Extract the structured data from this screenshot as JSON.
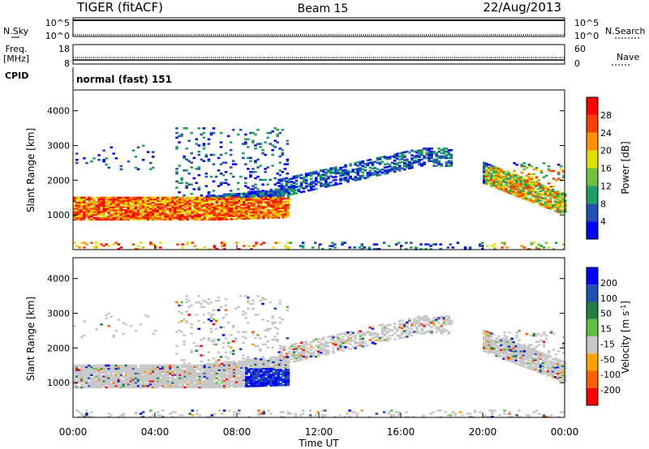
{
  "header": {
    "radar": "TIGER (fitACF)",
    "beam": "Beam 15",
    "date": "22/Aug/2013"
  },
  "params": {
    "nsky_label": "N.Sky",
    "nsearch_label": "N.Search",
    "freq_label_line1": "Freq.",
    "freq_label_line2": "[MHz]",
    "nave_label": "Nave",
    "cpid_label": "CPID",
    "cpid_value": "normal (fast) 151",
    "noise_left_ticks": [
      "10^5",
      "10^0"
    ],
    "noise_right_ticks": [
      "10^5",
      "10^0"
    ],
    "freq_left_ticks": [
      "18",
      "8"
    ],
    "freq_right_ticks": [
      "60",
      "0"
    ]
  },
  "chart_data": [
    {
      "type": "heatmap",
      "panel": "power",
      "ylabel": "Slant Range [km]",
      "xlabel": "Time UT",
      "ylim": [
        0,
        4600
      ],
      "yticks": [
        1000,
        2000,
        3000,
        4000
      ],
      "xlim": [
        0,
        24
      ],
      "colorbar": {
        "label": "Power [dB]",
        "ticks": [
          4,
          8,
          12,
          16,
          20,
          24,
          28
        ],
        "range": [
          0,
          30
        ]
      },
      "echo_regions": [
        {
          "t_start": 0,
          "t_end": 10.5,
          "range_low": 900,
          "range_high": 1500,
          "value": "20-28 dB"
        },
        {
          "t_start": 10,
          "t_end": 18.5,
          "range_low": 1500,
          "range_high": 2900,
          "value": "4-12 dB"
        },
        {
          "t_start": 20,
          "t_end": 24,
          "range_low": 900,
          "range_high": 2400,
          "value": "8-24 dB"
        }
      ]
    },
    {
      "type": "heatmap",
      "panel": "velocity",
      "ylabel": "Slant Range [km]",
      "xlabel": "Time UT",
      "ylim": [
        0,
        4600
      ],
      "yticks": [
        1000,
        2000,
        3000,
        4000
      ],
      "xlim": [
        0,
        24
      ],
      "colorbar": {
        "label": "Velocity [m s^-1]",
        "ticks": [
          200,
          100,
          50,
          15,
          -15,
          -50,
          -100,
          -200
        ],
        "range": [
          -250,
          250
        ]
      },
      "echo_regions": [
        {
          "t_start": 0,
          "t_end": 10.5,
          "range_low": 900,
          "range_high": 1500,
          "value": "-15 to 15 m/s (grey)"
        },
        {
          "t_start": 8.3,
          "t_end": 10.5,
          "range_low": 700,
          "range_high": 1400,
          "value": "100-200 m/s"
        },
        {
          "t_start": 20,
          "t_end": 24,
          "range_low": 900,
          "range_high": 2400,
          "value": "-15 to 15 m/s (grey)"
        }
      ]
    }
  ],
  "time_axis": {
    "label": "Time UT",
    "ticks": [
      "00:00",
      "04:00",
      "08:00",
      "12:00",
      "16:00",
      "20:00",
      "00:00"
    ]
  },
  "colors": {
    "power_scale": [
      "#0000ff",
      "#2050b0",
      "#20a060",
      "#70c040",
      "#e0e000",
      "#ff9000",
      "#ff4000",
      "#ff0000"
    ],
    "velocity_scale": [
      "#ff0000",
      "#ff6000",
      "#ffa000",
      "#c8c8c8",
      "#60c040",
      "#208040",
      "#2050b0",
      "#0000ff"
    ]
  }
}
